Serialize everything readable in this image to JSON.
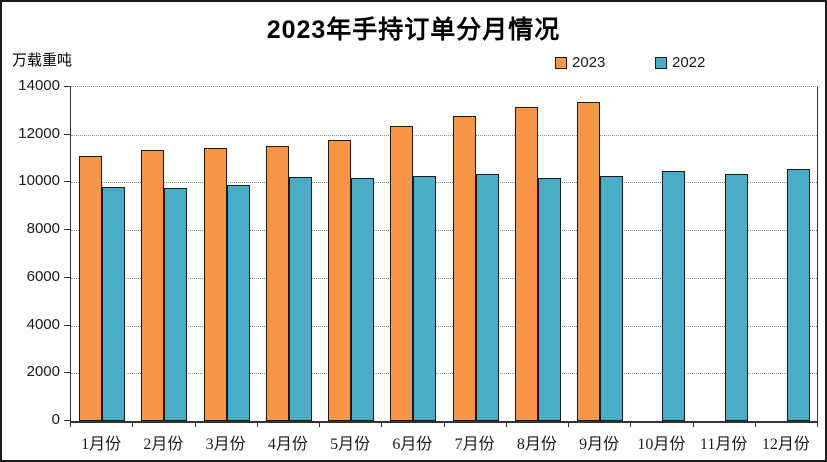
{
  "title": "2023年手持订单分月情况",
  "y_axis_unit": "万载重吨",
  "legend": [
    {
      "label": "2023",
      "color": "#F79646"
    },
    {
      "label": "2022",
      "color": "#4BACC6"
    }
  ],
  "chart_data": {
    "type": "bar",
    "title": "2023年手持订单分月情况",
    "ylabel": "万载重吨",
    "xlabel": "",
    "categories": [
      "1月份",
      "2月份",
      "3月份",
      "4月份",
      "5月份",
      "6月份",
      "7月份",
      "8月份",
      "9月份",
      "10月份",
      "11月份",
      "12月份"
    ],
    "series": [
      {
        "name": "2023",
        "color": "#F79646",
        "values": [
          11110,
          11360,
          11450,
          11510,
          11780,
          12380,
          12790,
          13150,
          13390,
          null,
          null,
          null
        ]
      },
      {
        "name": "2022",
        "color": "#4BACC6",
        "values": [
          9820,
          9780,
          9900,
          10220,
          10190,
          10250,
          10350,
          10170,
          10280,
          10460,
          10370,
          10560
        ]
      }
    ],
    "ylim": [
      0,
      14000
    ],
    "yticks": [
      0,
      2000,
      4000,
      6000,
      8000,
      10000,
      12000,
      14000
    ],
    "grid": "horizontal dotted",
    "legend_position": "top right, above plot",
    "bar_border_color": "#1a1a1a",
    "gridline_color": "#8c8c8c"
  }
}
